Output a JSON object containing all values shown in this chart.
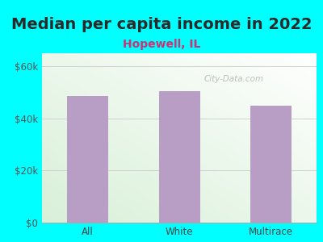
{
  "title": "Median per capita income in 2022",
  "subtitle": "Hopewell, IL",
  "categories": [
    "All",
    "White",
    "Multirace"
  ],
  "values": [
    48500,
    50500,
    45000
  ],
  "bar_color": "#b89ec4",
  "title_fontsize": 14,
  "subtitle_fontsize": 10,
  "subtitle_color": "#cc3377",
  "title_color": "#2a2a2a",
  "background_color": "#00ffff",
  "plot_bg_color_topleft": "#d8f0d8",
  "plot_bg_color_bottomright": "#ffffff",
  "yticks": [
    0,
    20000,
    40000,
    60000
  ],
  "ytick_labels": [
    "$0",
    "$20k",
    "$40k",
    "$60k"
  ],
  "ylim": [
    0,
    65000
  ],
  "watermark": "City-Data.com",
  "xlabel_color": "#444444",
  "tick_color": "#555555"
}
